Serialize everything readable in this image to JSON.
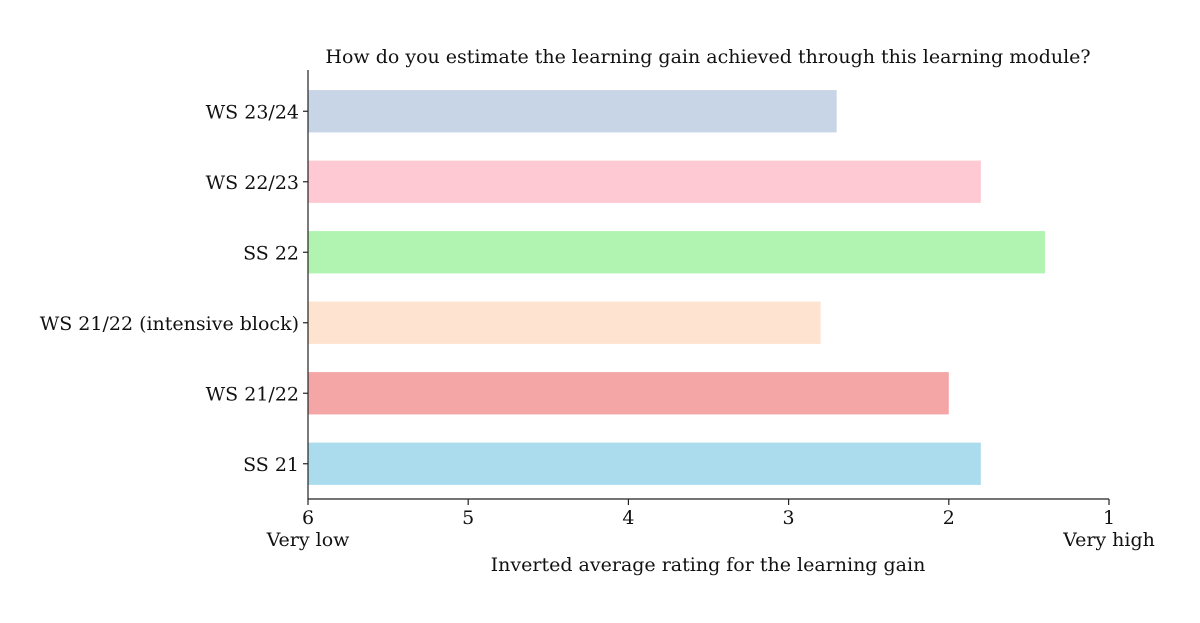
{
  "chart_data": {
    "type": "bar",
    "orientation": "horizontal",
    "title": "How do you estimate the learning gain achieved through this learning module?",
    "xlabel": "Inverted average rating for the learning gain",
    "ylabel": "",
    "x_axis_inverted": true,
    "xlim": [
      6,
      1
    ],
    "xticks": [
      6,
      5,
      4,
      3,
      2,
      1
    ],
    "x_end_labels": {
      "low": "Very low",
      "high": "Very high"
    },
    "grid": false,
    "categories": [
      "WS 23/24",
      "WS 22/23",
      "SS 22",
      "WS 21/22 (intensive block)",
      "WS 21/22",
      "SS 21"
    ],
    "values": [
      2.7,
      1.8,
      1.4,
      2.8,
      2.0,
      1.8
    ],
    "colors": [
      "#c8d5e6",
      "#fec9d3",
      "#b1f3b1",
      "#fee4d0",
      "#f4a6a6",
      "#aadcee"
    ]
  }
}
